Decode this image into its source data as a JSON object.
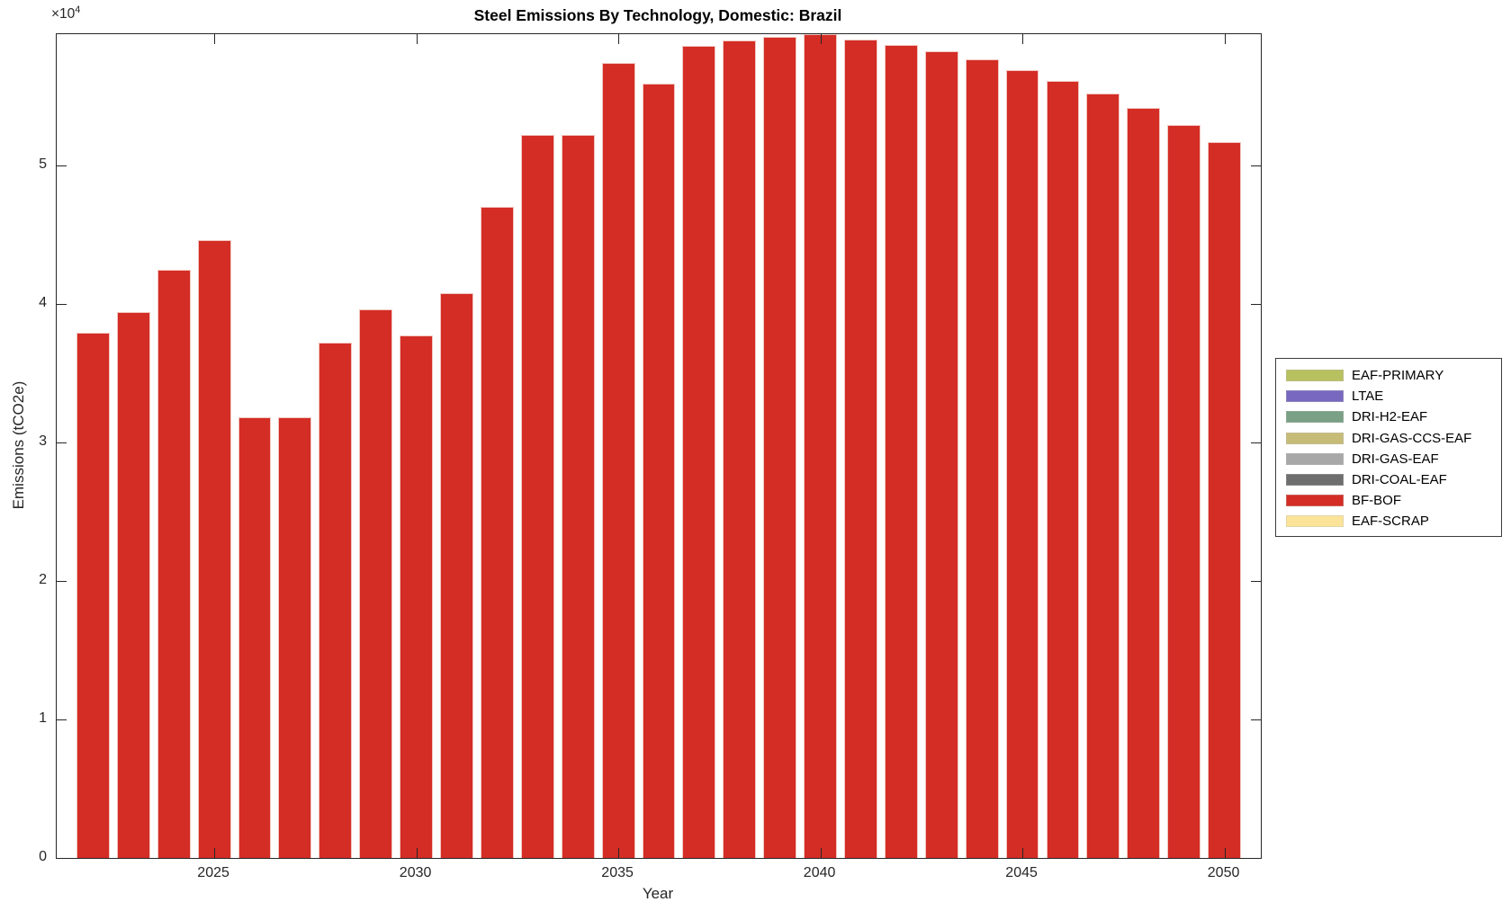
{
  "y_axis_exponent": {
    "base": "×10",
    "power": "4"
  },
  "legend": {
    "entries": [
      {
        "label": "EAF-PRIMARY",
        "color": "#b8c15f"
      },
      {
        "label": "LTAE",
        "color": "#7868be"
      },
      {
        "label": "DRI-H2-EAF",
        "color": "#7aa085"
      },
      {
        "label": "DRI-GAS-CCS-EAF",
        "color": "#c6bc78"
      },
      {
        "label": "DRI-GAS-EAF",
        "color": "#a8a8a8"
      },
      {
        "label": "DRI-COAL-EAF",
        "color": "#6e6e6e"
      },
      {
        "label": "BF-BOF",
        "color": "#d32d25"
      },
      {
        "label": "EAF-SCRAP",
        "color": "#fbe49a"
      }
    ]
  },
  "chart_data": {
    "type": "bar",
    "title": "Steel Emissions By Technology, Domestic: Brazil",
    "xlabel": "Year",
    "ylabel": "Emissions (tCO2e)",
    "x": [
      2022,
      2023,
      2024,
      2025,
      2026,
      2027,
      2028,
      2029,
      2030,
      2031,
      2032,
      2033,
      2034,
      2035,
      2036,
      2037,
      2038,
      2039,
      2040,
      2041,
      2042,
      2043,
      2044,
      2045,
      2046,
      2047,
      2048,
      2049,
      2050
    ],
    "series": [
      {
        "name": "BF-BOF",
        "color": "#d32d25",
        "edge_color": "#f2c6c0",
        "values": [
          37950,
          39450,
          42450,
          44600,
          31850,
          31850,
          37200,
          39600,
          37750,
          40800,
          47050,
          52250,
          52250,
          57450,
          55950,
          58650,
          59050,
          59300,
          59500,
          59100,
          58750,
          58250,
          57650,
          56900,
          56100,
          55200,
          54150,
          52950,
          51700
        ]
      }
    ],
    "xlim": [
      2021.1,
      2050.9
    ],
    "ylim": [
      0,
      59500
    ],
    "x_ticks": [
      2025,
      2030,
      2035,
      2040,
      2045,
      2050
    ],
    "y_ticks": [
      0,
      10000,
      20000,
      30000,
      40000,
      50000
    ],
    "y_tick_labels": [
      "0",
      "1",
      "2",
      "3",
      "4",
      "5"
    ],
    "y_scale_exponent": 4,
    "bar_width_fraction": 0.82,
    "grid": false,
    "legend_position": "right-outside"
  }
}
